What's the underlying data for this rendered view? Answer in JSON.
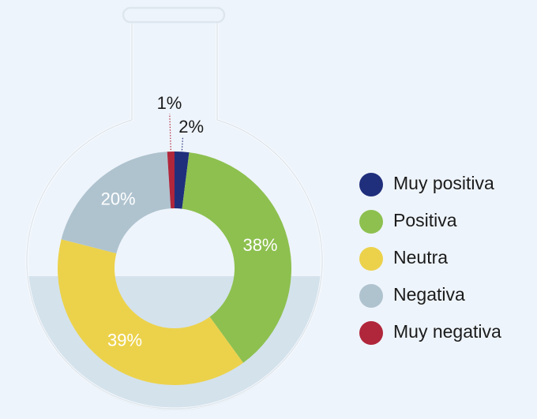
{
  "chart_data": {
    "type": "donut",
    "categories": [
      "Muy positiva",
      "Positiva",
      "Neutra",
      "Negativa",
      "Muy negativa"
    ],
    "values": [
      2,
      38,
      39,
      20,
      1
    ],
    "value_labels": [
      "2%",
      "38%",
      "39%",
      "20%",
      "1%"
    ],
    "colors": [
      "#1f2f7c",
      "#8dc04f",
      "#ecd24b",
      "#afc3cf",
      "#b0263b"
    ],
    "legend": "right"
  }
}
